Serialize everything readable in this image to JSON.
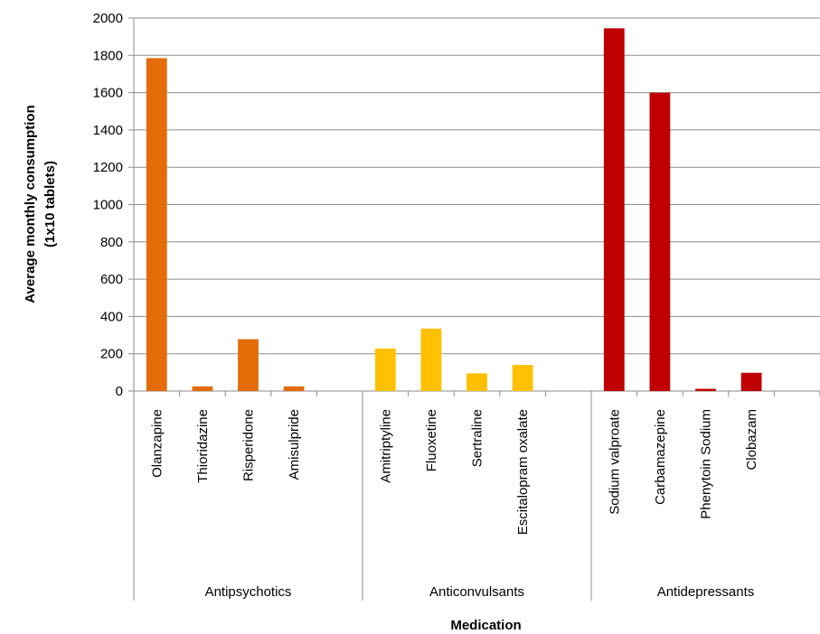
{
  "chart_data": {
    "type": "bar",
    "title": "",
    "xlabel": "Medication",
    "ylabel": [
      "Average monthly consumption",
      "(1x10 tablets)"
    ],
    "ylim": [
      0,
      2000
    ],
    "yticks": [
      0,
      200,
      400,
      600,
      800,
      1000,
      1200,
      1400,
      1600,
      1800,
      2000
    ],
    "grid": true,
    "groups": [
      {
        "name": "Antipsychotics",
        "color": "#E36C09",
        "categories": [
          "Olanzapine",
          "Thioridazine",
          "Risperidone",
          "Amisulpride"
        ],
        "values": [
          1785,
          25,
          278,
          25
        ]
      },
      {
        "name": "Anticonvulsants",
        "color": "#FFC000",
        "categories": [
          "Amitriptyline",
          "Fluoxetine",
          "Sertraline",
          "Escitalopram oxalate"
        ],
        "values": [
          228,
          335,
          95,
          140
        ]
      },
      {
        "name": "Antidepressants",
        "color": "#C00000",
        "categories": [
          "Sodium valproate",
          "Carbamazepine",
          "Phenytoin Sodium",
          "Clobazam"
        ],
        "values": [
          1945,
          1600,
          12,
          98
        ]
      }
    ]
  }
}
